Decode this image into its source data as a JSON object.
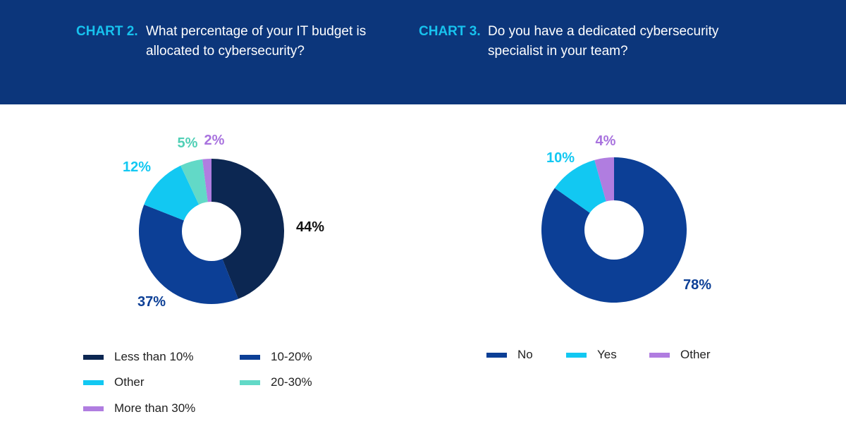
{
  "header": {
    "chart2": {
      "tag": "CHART 2.",
      "question": "What percentage of your IT budget is allocated to cybersecurity?"
    },
    "chart3": {
      "tag": "CHART 3.",
      "question": "Do you have a dedicated cybersecurity specialist in your team?"
    }
  },
  "colors": {
    "header_bg": "#0c367b",
    "tag": "#17c2ee"
  },
  "chart_data": [
    {
      "type": "pie",
      "donut": true,
      "title": "CHART 2. What percentage of your IT budget is allocated to cybersecurity?",
      "legend_position": "bottom",
      "slices": [
        {
          "name": "Less than 10%",
          "value": 44,
          "label": "44%",
          "color": "#0c2752",
          "label_color": "#111111"
        },
        {
          "name": "10-20%",
          "value": 37,
          "label": "37%",
          "color": "#0c3f96",
          "label_color": "#0c3f96"
        },
        {
          "name": "Other",
          "value": 12,
          "label": "12%",
          "color": "#12c8f2",
          "label_color": "#12c8f2"
        },
        {
          "name": "20-30%",
          "value": 5,
          "label": "5%",
          "color": "#62d9c7",
          "label_color": "#4fcfb5"
        },
        {
          "name": "More than 30%",
          "value": 2,
          "label": "2%",
          "color": "#b07de0",
          "label_color": "#a872de"
        }
      ]
    },
    {
      "type": "pie",
      "donut": true,
      "title": "CHART 3. Do you have a dedicated cybersecurity specialist in your team?",
      "legend_position": "bottom",
      "slices": [
        {
          "name": "No",
          "value": 78,
          "label": "78%",
          "color": "#0c3f96",
          "label_color": "#0c3f96"
        },
        {
          "name": "Yes",
          "value": 10,
          "label": "10%",
          "color": "#12c8f2",
          "label_color": "#12c8f2"
        },
        {
          "name": "Other",
          "value": 4,
          "label": "4%",
          "color": "#b07de0",
          "label_color": "#a872de"
        }
      ]
    }
  ],
  "legend2": [
    {
      "label": "Less than 10%",
      "color": "#0c2752"
    },
    {
      "label": "10-20%",
      "color": "#0c3f96"
    },
    {
      "label": "Other",
      "color": "#12c8f2"
    },
    {
      "label": "20-30%",
      "color": "#62d9c7"
    },
    {
      "label": "More than 30%",
      "color": "#b07de0"
    }
  ],
  "legend3": [
    {
      "label": "No",
      "color": "#0c3f96"
    },
    {
      "label": "Yes",
      "color": "#12c8f2"
    },
    {
      "label": "Other",
      "color": "#b07de0"
    }
  ]
}
